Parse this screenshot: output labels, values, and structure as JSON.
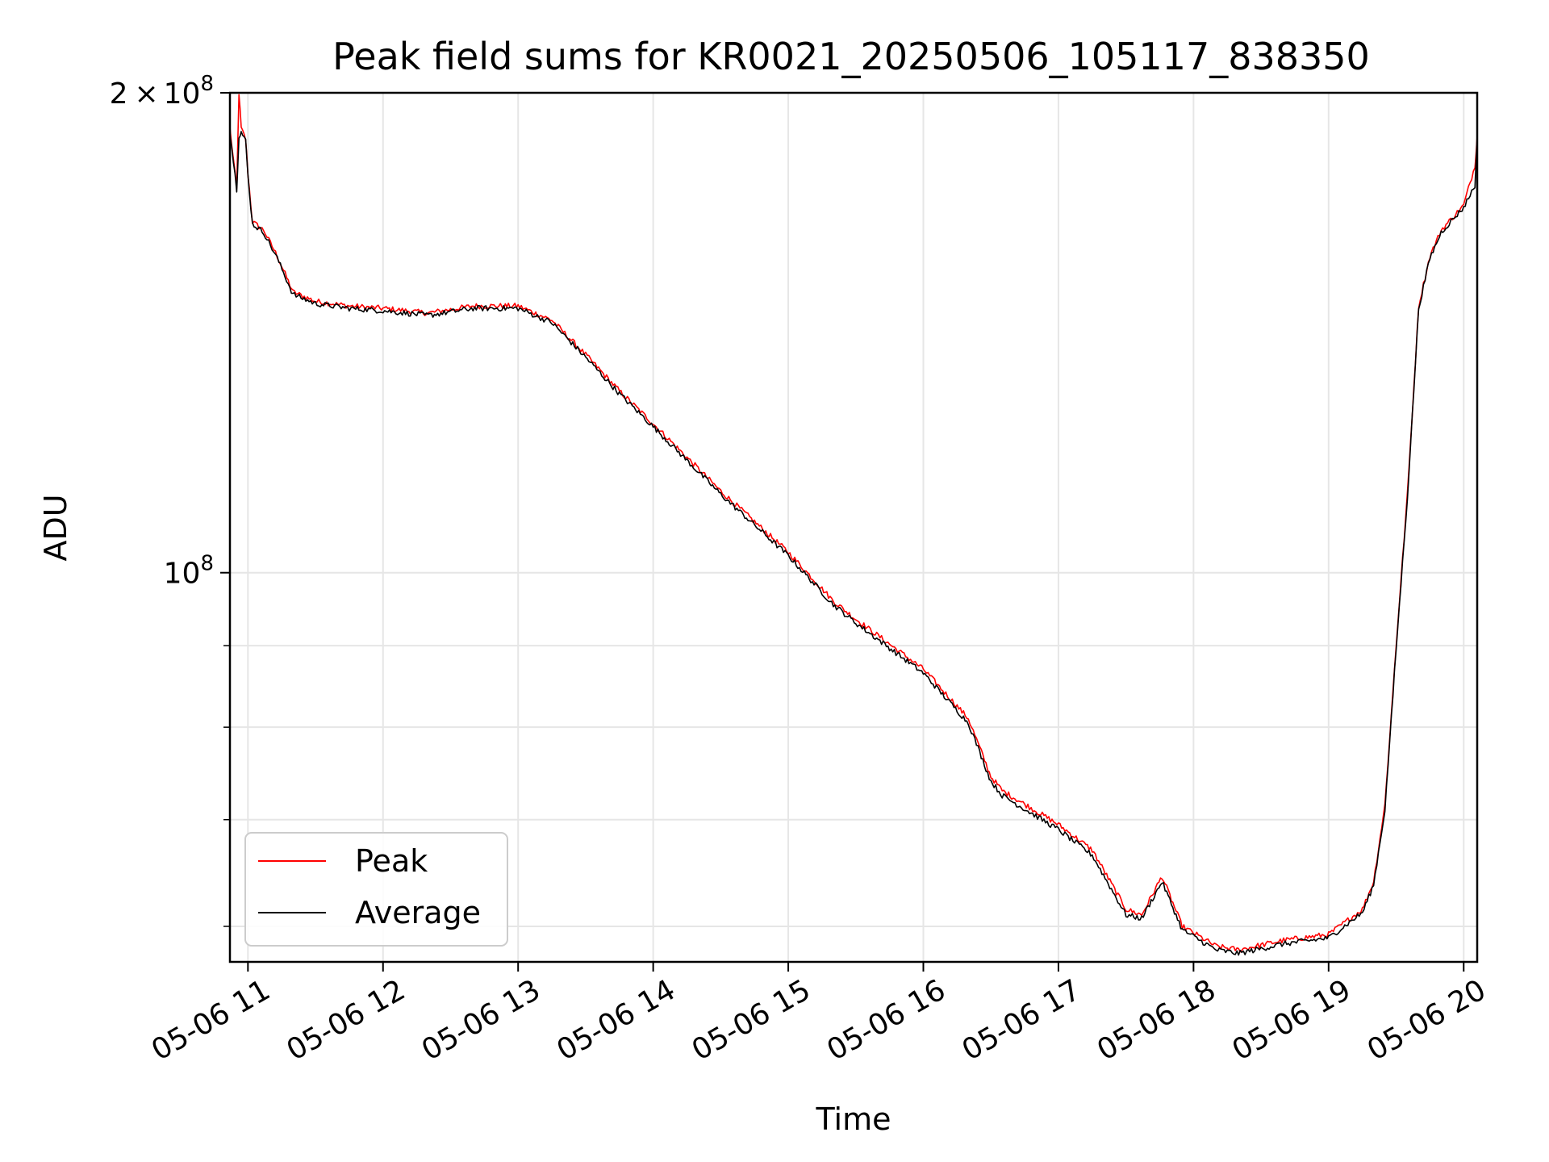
{
  "chart_data": {
    "type": "line",
    "title": "Peak field sums for KR0021_20250506_105117_838350",
    "xlabel": "Time",
    "ylabel": "ADU",
    "yscale": "log",
    "ylim": [
      57000000,
      200000000
    ],
    "xlim": [
      "2025-05-06 10:52",
      "2025-05-06 20:06"
    ],
    "grid": true,
    "legend_position": "lower-left",
    "x_tick_labels": [
      "05-06 11",
      "05-06 12",
      "05-06 13",
      "05-06 14",
      "05-06 15",
      "05-06 16",
      "05-06 17",
      "05-06 18",
      "05-06 19",
      "05-06 20"
    ],
    "y_tick_labels": [
      {
        "value": 200000000,
        "mantissa": "2",
        "times": "×",
        "base": "10",
        "exp": "8"
      },
      {
        "value": 100000000,
        "mantissa": "",
        "times": "",
        "base": "10",
        "exp": "8"
      }
    ],
    "y_minor_ticks": [
      60000000,
      70000000,
      80000000,
      90000000
    ],
    "colors": {
      "Peak": "#ff0000",
      "Average": "#000000"
    },
    "series": [
      {
        "name": "Peak",
        "x": [
          "2025-05-06 10:52",
          "2025-05-06 10:55",
          "2025-05-06 10:56",
          "2025-05-06 10:57",
          "2025-05-06 10:59",
          "2025-05-06 11:00",
          "2025-05-06 11:02",
          "2025-05-06 11:07",
          "2025-05-06 11:13",
          "2025-05-06 11:20",
          "2025-05-06 11:30",
          "2025-05-06 11:45",
          "2025-05-06 12:00",
          "2025-05-06 12:20",
          "2025-05-06 12:40",
          "2025-05-06 13:00",
          "2025-05-06 13:15",
          "2025-05-06 13:30",
          "2025-05-06 13:45",
          "2025-05-06 14:00",
          "2025-05-06 14:30",
          "2025-05-06 15:00",
          "2025-05-06 15:20",
          "2025-05-06 15:30",
          "2025-05-06 16:00",
          "2025-05-06 16:20",
          "2025-05-06 16:30",
          "2025-05-06 16:35",
          "2025-05-06 17:00",
          "2025-05-06 17:15",
          "2025-05-06 17:30",
          "2025-05-06 17:37",
          "2025-05-06 17:46",
          "2025-05-06 17:55",
          "2025-05-06 18:10",
          "2025-05-06 18:20",
          "2025-05-06 18:40",
          "2025-05-06 19:00",
          "2025-05-06 19:15",
          "2025-05-06 19:20",
          "2025-05-06 19:25",
          "2025-05-06 19:30",
          "2025-05-06 19:35",
          "2025-05-06 19:40",
          "2025-05-06 19:45",
          "2025-05-06 19:50",
          "2025-05-06 20:00",
          "2025-05-06 20:05",
          "2025-05-06 20:06"
        ],
        "y": [
          190000000,
          174000000,
          200000000,
          190000000,
          187000000,
          178000000,
          166000000,
          164000000,
          158000000,
          150000000,
          148000000,
          147000000,
          146500000,
          145500000,
          147000000,
          147000000,
          144000000,
          137000000,
          130000000,
          124000000,
          112500000,
          103000000,
          96000000,
          93500000,
          87000000,
          81000000,
          74500000,
          73000000,
          69500000,
          67000000,
          61500000,
          61000000,
          64500000,
          60000000,
          58300000,
          58000000,
          58800000,
          59300000,
          61500000,
          64000000,
          71500000,
          90000000,
          112000000,
          147000000,
          158000000,
          164000000,
          170000000,
          180000000,
          188000000
        ]
      },
      {
        "name": "Average",
        "x": [
          "2025-05-06 10:52",
          "2025-05-06 10:55",
          "2025-05-06 10:56",
          "2025-05-06 10:57",
          "2025-05-06 10:59",
          "2025-05-06 11:00",
          "2025-05-06 11:02",
          "2025-05-06 11:07",
          "2025-05-06 11:13",
          "2025-05-06 11:20",
          "2025-05-06 11:30",
          "2025-05-06 11:45",
          "2025-05-06 12:00",
          "2025-05-06 12:20",
          "2025-05-06 12:40",
          "2025-05-06 13:00",
          "2025-05-06 13:15",
          "2025-05-06 13:30",
          "2025-05-06 13:45",
          "2025-05-06 14:00",
          "2025-05-06 14:30",
          "2025-05-06 15:00",
          "2025-05-06 15:20",
          "2025-05-06 15:30",
          "2025-05-06 16:00",
          "2025-05-06 16:20",
          "2025-05-06 16:30",
          "2025-05-06 16:35",
          "2025-05-06 17:00",
          "2025-05-06 17:15",
          "2025-05-06 17:30",
          "2025-05-06 17:37",
          "2025-05-06 17:46",
          "2025-05-06 17:55",
          "2025-05-06 18:10",
          "2025-05-06 18:20",
          "2025-05-06 18:40",
          "2025-05-06 19:00",
          "2025-05-06 19:15",
          "2025-05-06 19:20",
          "2025-05-06 19:25",
          "2025-05-06 19:30",
          "2025-05-06 19:35",
          "2025-05-06 19:40",
          "2025-05-06 19:45",
          "2025-05-06 19:50",
          "2025-05-06 20:00",
          "2025-05-06 20:05",
          "2025-05-06 20:06"
        ],
        "y": [
          189000000,
          174000000,
          188000000,
          189000000,
          186500000,
          177500000,
          165500000,
          163500000,
          157500000,
          149500000,
          147500000,
          146500000,
          146000000,
          145000000,
          146500000,
          146500000,
          143500000,
          136500000,
          129500000,
          123500000,
          112000000,
          102500000,
          95500000,
          93000000,
          86500000,
          80500000,
          74000000,
          72500000,
          69000000,
          66500000,
          61000000,
          60700000,
          64000000,
          59700000,
          58000000,
          57700000,
          58500000,
          59000000,
          61200000,
          63700000,
          71000000,
          89500000,
          111500000,
          146500000,
          157500000,
          163500000,
          169500000,
          175000000,
          187500000
        ]
      }
    ]
  }
}
